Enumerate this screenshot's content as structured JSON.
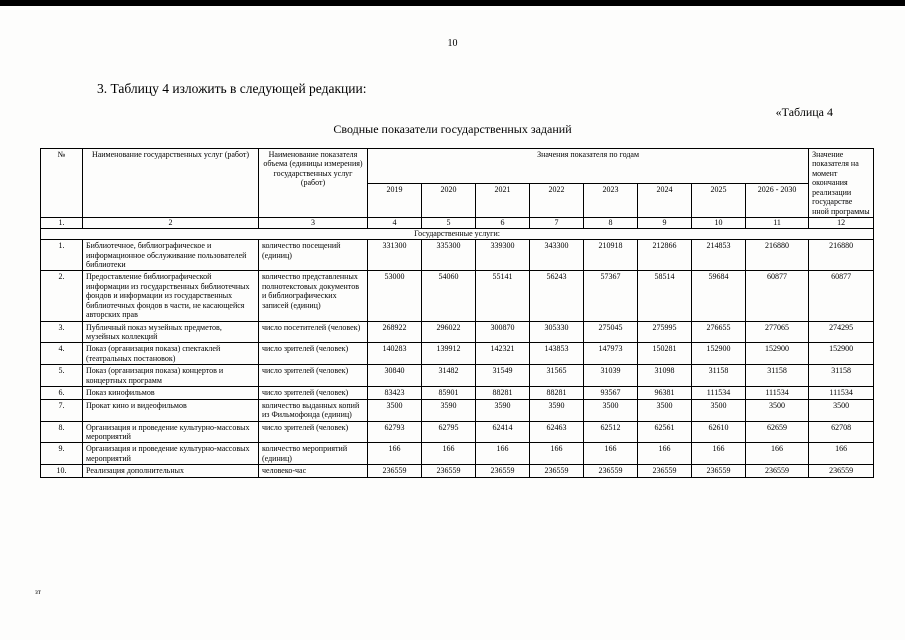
{
  "page": {
    "page_number": "10",
    "intro": "3. Таблицу 4 изложить в следующей редакции:",
    "table_label": "«Таблица 4",
    "table_title": "Сводные показатели государственных заданий",
    "footer_note": "зт"
  },
  "table": {
    "headers": {
      "num": "№",
      "service": "Наименование государственных услуг (работ)",
      "indicator": "Наименование показателя объема (единицы измерения) государственных услуг (работ)",
      "years_group": "Значения показателя по годам",
      "years": [
        "2019",
        "2020",
        "2021",
        "2022",
        "2023",
        "2024",
        "2025",
        "2026 - 2030"
      ],
      "final": "Значение показателя на момент окончания реализации государстве нной программы"
    },
    "col_numbers": [
      "1.",
      "2",
      "3",
      "4",
      "5",
      "6",
      "7",
      "8",
      "9",
      "10",
      "11",
      "12"
    ],
    "section": "Государственные услуги:",
    "rows": [
      {
        "num": "1.",
        "service": "Библиотечное, библиографическое и информационное обслуживание пользователей библиотеки",
        "indicator": "количество посещений (единиц)",
        "values": [
          "331300",
          "335300",
          "339300",
          "343300",
          "210918",
          "212866",
          "214853",
          "216880",
          "216880"
        ]
      },
      {
        "num": "2.",
        "service": "Предоставление библиографической информации из государственных библиотечных фондов и информации из государственных библиотечных фондов в части, не касающейся авторских прав",
        "indicator": "количество представленных полнотекстовых документов и библиографических записей (единиц)",
        "values": [
          "53000",
          "54060",
          "55141",
          "56243",
          "57367",
          "58514",
          "59684",
          "60877",
          "60877"
        ]
      },
      {
        "num": "3.",
        "service": "Публичный показ музейных предметов, музейных коллекций",
        "indicator": "число посетителей (человек)",
        "values": [
          "268922",
          "296022",
          "300870",
          "305330",
          "275045",
          "275995",
          "276655",
          "277065",
          "274295"
        ]
      },
      {
        "num": "4.",
        "service": "Показ (организация показа) спектаклей (театральных постановок)",
        "indicator": "число зрителей (человек)",
        "values": [
          "140283",
          "139912",
          "142321",
          "143853",
          "147973",
          "150281",
          "152900",
          "152900",
          "152900"
        ]
      },
      {
        "num": "5.",
        "service": "Показ (организация показа) концертов и концертных программ",
        "indicator": "число зрителей (человек)",
        "values": [
          "30840",
          "31482",
          "31549",
          "31565",
          "31039",
          "31098",
          "31158",
          "31158",
          "31158"
        ]
      },
      {
        "num": "6.",
        "service": "Показ кинофильмов",
        "indicator": "число зрителей (человек)",
        "values": [
          "83423",
          "85901",
          "88281",
          "88281",
          "93567",
          "96381",
          "111534",
          "111534",
          "111534"
        ]
      },
      {
        "num": "7.",
        "service": "Прокат кино и видеофильмов",
        "indicator": "количество выданных копий из Фильмофонда (единиц)",
        "values": [
          "3500",
          "3590",
          "3590",
          "3590",
          "3500",
          "3500",
          "3500",
          "3500",
          "3500"
        ]
      },
      {
        "num": "8.",
        "service": "Организация и проведение культурно-массовых мероприятий",
        "indicator": "число зрителей (человек)",
        "values": [
          "62793",
          "62795",
          "62414",
          "62463",
          "62512",
          "62561",
          "62610",
          "62659",
          "62708"
        ]
      },
      {
        "num": "9.",
        "service": "Организация и проведение культурно-массовых мероприятий",
        "indicator": "количество мероприятий (единиц)",
        "values": [
          "166",
          "166",
          "166",
          "166",
          "166",
          "166",
          "166",
          "166",
          "166"
        ]
      },
      {
        "num": "10.",
        "service": "Реализация дополнительных",
        "indicator": "человеко-час",
        "values": [
          "236559",
          "236559",
          "236559",
          "236559",
          "236559",
          "236559",
          "236559",
          "236559",
          "236559"
        ]
      }
    ]
  }
}
